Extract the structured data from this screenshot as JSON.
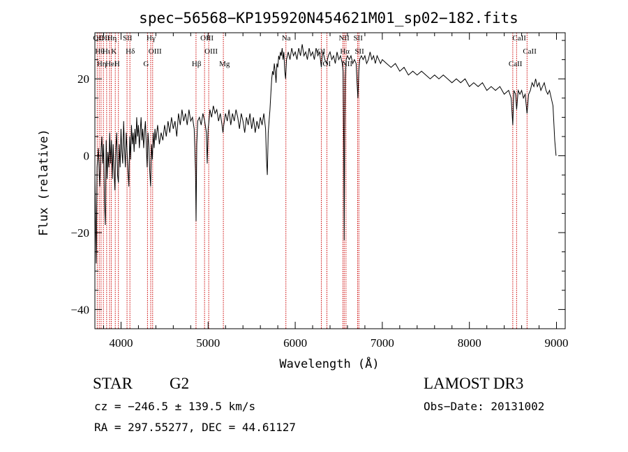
{
  "chart_data": {
    "type": "line",
    "title": "spec−56568−KP195920N454621M01_sp02−182.fits",
    "xlabel": "Wavelength (Å)",
    "ylabel": "Flux (relative)",
    "xlim": [
      3700,
      9100
    ],
    "ylim": [
      -45,
      32
    ],
    "xticks": [
      {
        "value": 4000,
        "label": "4000"
      },
      {
        "value": 5000,
        "label": "5000"
      },
      {
        "value": 6000,
        "label": "6000"
      },
      {
        "value": 7000,
        "label": "7000"
      },
      {
        "value": 8000,
        "label": "8000"
      },
      {
        "value": 9000,
        "label": "9000"
      }
    ],
    "yticks": [
      {
        "value": 20,
        "label": "20"
      },
      {
        "value": 0,
        "label": "0"
      },
      {
        "value": -20,
        "label": "−20"
      },
      {
        "value": -40,
        "label": "−40"
      }
    ],
    "grid": false,
    "series": [
      {
        "color": "#000000",
        "points": [
          [
            3700,
            -5
          ],
          [
            3715,
            -28
          ],
          [
            3725,
            -3
          ],
          [
            3740,
            2
          ],
          [
            3755,
            -8
          ],
          [
            3765,
            -1
          ],
          [
            3780,
            5
          ],
          [
            3790,
            -2
          ],
          [
            3800,
            3
          ],
          [
            3810,
            -12
          ],
          [
            3820,
            -18
          ],
          [
            3830,
            4
          ],
          [
            3840,
            -6
          ],
          [
            3850,
            1
          ],
          [
            3860,
            -3
          ],
          [
            3870,
            6
          ],
          [
            3880,
            -2
          ],
          [
            3890,
            4
          ],
          [
            3900,
            -6
          ],
          [
            3910,
            3
          ],
          [
            3920,
            -4
          ],
          [
            3930,
            -9
          ],
          [
            3940,
            2
          ],
          [
            3950,
            6
          ],
          [
            3960,
            -5
          ],
          [
            3970,
            -7
          ],
          [
            3980,
            3
          ],
          [
            3990,
            -3
          ],
          [
            4000,
            7
          ],
          [
            4010,
            1
          ],
          [
            4020,
            -2
          ],
          [
            4030,
            9
          ],
          [
            4040,
            2
          ],
          [
            4050,
            -3
          ],
          [
            4060,
            6
          ],
          [
            4070,
            1
          ],
          [
            4080,
            -4
          ],
          [
            4090,
            -8
          ],
          [
            4100,
            5
          ],
          [
            4110,
            -1
          ],
          [
            4120,
            8
          ],
          [
            4130,
            3
          ],
          [
            4140,
            6
          ],
          [
            4150,
            1
          ],
          [
            4160,
            7
          ],
          [
            4170,
            3
          ],
          [
            4180,
            10
          ],
          [
            4190,
            5
          ],
          [
            4200,
            8
          ],
          [
            4210,
            2
          ],
          [
            4220,
            6
          ],
          [
            4230,
            10
          ],
          [
            4240,
            4
          ],
          [
            4250,
            7
          ],
          [
            4260,
            2
          ],
          [
            4270,
            6
          ],
          [
            4280,
            9
          ],
          [
            4290,
            3
          ],
          [
            4300,
            -3
          ],
          [
            4310,
            6
          ],
          [
            4320,
            2
          ],
          [
            4330,
            -4
          ],
          [
            4340,
            -8
          ],
          [
            4350,
            3
          ],
          [
            4360,
            -1
          ],
          [
            4370,
            6
          ],
          [
            4380,
            2
          ],
          [
            4390,
            7
          ],
          [
            4400,
            4
          ],
          [
            4420,
            8
          ],
          [
            4440,
            3
          ],
          [
            4460,
            6
          ],
          [
            4480,
            4
          ],
          [
            4500,
            8
          ],
          [
            4520,
            5
          ],
          [
            4540,
            9
          ],
          [
            4560,
            6
          ],
          [
            4580,
            10
          ],
          [
            4600,
            7
          ],
          [
            4620,
            9
          ],
          [
            4640,
            5
          ],
          [
            4660,
            11
          ],
          [
            4680,
            8
          ],
          [
            4700,
            12
          ],
          [
            4720,
            9
          ],
          [
            4740,
            11
          ],
          [
            4760,
            8
          ],
          [
            4780,
            12
          ],
          [
            4800,
            9
          ],
          [
            4820,
            10
          ],
          [
            4840,
            7
          ],
          [
            4855,
            -4
          ],
          [
            4862,
            -17
          ],
          [
            4870,
            3
          ],
          [
            4880,
            9
          ],
          [
            4900,
            10
          ],
          [
            4920,
            8
          ],
          [
            4940,
            11
          ],
          [
            4960,
            9
          ],
          [
            4980,
            6
          ],
          [
            4990,
            -2
          ],
          [
            5000,
            7
          ],
          [
            5010,
            9
          ],
          [
            5020,
            12
          ],
          [
            5040,
            10
          ],
          [
            5060,
            13
          ],
          [
            5080,
            11
          ],
          [
            5100,
            12
          ],
          [
            5120,
            9
          ],
          [
            5140,
            11
          ],
          [
            5160,
            8
          ],
          [
            5170,
            6
          ],
          [
            5180,
            8
          ],
          [
            5200,
            11
          ],
          [
            5220,
            9
          ],
          [
            5240,
            12
          ],
          [
            5260,
            8
          ],
          [
            5280,
            11
          ],
          [
            5300,
            9
          ],
          [
            5320,
            12
          ],
          [
            5340,
            10
          ],
          [
            5360,
            7
          ],
          [
            5380,
            11
          ],
          [
            5400,
            9
          ],
          [
            5420,
            6
          ],
          [
            5440,
            10
          ],
          [
            5460,
            8
          ],
          [
            5480,
            11
          ],
          [
            5500,
            7
          ],
          [
            5520,
            10
          ],
          [
            5540,
            6
          ],
          [
            5560,
            9
          ],
          [
            5580,
            7
          ],
          [
            5600,
            10
          ],
          [
            5620,
            8
          ],
          [
            5640,
            11
          ],
          [
            5660,
            7
          ],
          [
            5670,
            -1
          ],
          [
            5680,
            -5
          ],
          [
            5690,
            6
          ],
          [
            5700,
            9
          ],
          [
            5710,
            12
          ],
          [
            5720,
            16
          ],
          [
            5730,
            20
          ],
          [
            5740,
            22
          ],
          [
            5750,
            21
          ],
          [
            5760,
            24
          ],
          [
            5770,
            22
          ],
          [
            5780,
            19
          ],
          [
            5790,
            24
          ],
          [
            5800,
            23
          ],
          [
            5810,
            26
          ],
          [
            5820,
            25
          ],
          [
            5830,
            27
          ],
          [
            5840,
            26
          ],
          [
            5850,
            28
          ],
          [
            5860,
            25
          ],
          [
            5870,
            27
          ],
          [
            5880,
            22
          ],
          [
            5890,
            20
          ],
          [
            5900,
            25
          ],
          [
            5920,
            27
          ],
          [
            5940,
            25
          ],
          [
            5960,
            28
          ],
          [
            5980,
            26
          ],
          [
            6000,
            27
          ],
          [
            6020,
            25
          ],
          [
            6040,
            28
          ],
          [
            6060,
            26
          ],
          [
            6080,
            29
          ],
          [
            6100,
            26
          ],
          [
            6120,
            27
          ],
          [
            6140,
            25
          ],
          [
            6160,
            28
          ],
          [
            6180,
            26
          ],
          [
            6200,
            27
          ],
          [
            6220,
            25
          ],
          [
            6240,
            28
          ],
          [
            6260,
            26
          ],
          [
            6280,
            27
          ],
          [
            6300,
            23
          ],
          [
            6310,
            26
          ],
          [
            6320,
            27
          ],
          [
            6340,
            25
          ],
          [
            6360,
            24
          ],
          [
            6380,
            26
          ],
          [
            6400,
            27
          ],
          [
            6420,
            25
          ],
          [
            6440,
            26
          ],
          [
            6460,
            24
          ],
          [
            6480,
            27
          ],
          [
            6500,
            25
          ],
          [
            6520,
            26
          ],
          [
            6540,
            24
          ],
          [
            6550,
            22
          ],
          [
            6558,
            2
          ],
          [
            6563,
            -22
          ],
          [
            6568,
            5
          ],
          [
            6575,
            20
          ],
          [
            6585,
            25
          ],
          [
            6600,
            26
          ],
          [
            6620,
            25
          ],
          [
            6640,
            26
          ],
          [
            6660,
            24
          ],
          [
            6680,
            25
          ],
          [
            6700,
            24
          ],
          [
            6710,
            19
          ],
          [
            6720,
            15
          ],
          [
            6730,
            22
          ],
          [
            6740,
            25
          ],
          [
            6760,
            26
          ],
          [
            6780,
            25
          ],
          [
            6800,
            26
          ],
          [
            6820,
            24
          ],
          [
            6840,
            25
          ],
          [
            6860,
            27
          ],
          [
            6880,
            25
          ],
          [
            6900,
            26
          ],
          [
            6920,
            24
          ],
          [
            6940,
            26
          ],
          [
            6960,
            25
          ],
          [
            6980,
            24
          ],
          [
            7000,
            25
          ],
          [
            7050,
            24
          ],
          [
            7100,
            23
          ],
          [
            7150,
            24
          ],
          [
            7200,
            22
          ],
          [
            7250,
            23
          ],
          [
            7300,
            21
          ],
          [
            7350,
            22
          ],
          [
            7400,
            21
          ],
          [
            7450,
            22
          ],
          [
            7500,
            21
          ],
          [
            7550,
            20
          ],
          [
            7600,
            21
          ],
          [
            7650,
            20
          ],
          [
            7700,
            21
          ],
          [
            7750,
            20
          ],
          [
            7800,
            19
          ],
          [
            7850,
            20
          ],
          [
            7900,
            19
          ],
          [
            7950,
            20
          ],
          [
            8000,
            18
          ],
          [
            8050,
            19
          ],
          [
            8100,
            18
          ],
          [
            8150,
            19
          ],
          [
            8200,
            17
          ],
          [
            8250,
            18
          ],
          [
            8300,
            17
          ],
          [
            8350,
            18
          ],
          [
            8400,
            16
          ],
          [
            8450,
            17
          ],
          [
            8480,
            15
          ],
          [
            8498,
            8
          ],
          [
            8510,
            17
          ],
          [
            8530,
            16
          ],
          [
            8542,
            12
          ],
          [
            8560,
            17
          ],
          [
            8580,
            16
          ],
          [
            8600,
            17
          ],
          [
            8620,
            15
          ],
          [
            8640,
            16
          ],
          [
            8662,
            11
          ],
          [
            8680,
            16
          ],
          [
            8700,
            17
          ],
          [
            8720,
            19
          ],
          [
            8740,
            18
          ],
          [
            8760,
            20
          ],
          [
            8780,
            18
          ],
          [
            8800,
            19
          ],
          [
            8820,
            17
          ],
          [
            8840,
            18
          ],
          [
            8860,
            19
          ],
          [
            8880,
            17
          ],
          [
            8900,
            16
          ],
          [
            8920,
            17
          ],
          [
            8940,
            15
          ],
          [
            8960,
            13
          ],
          [
            8980,
            4
          ],
          [
            8995,
            0
          ]
        ]
      }
    ],
    "lines": [
      {
        "x": 3727,
        "labels": [
          "OII"
        ]
      },
      {
        "x": 3750,
        "labels": [
          "Hθ"
        ]
      },
      {
        "x": 3771,
        "labels": [
          "Hη"
        ]
      },
      {
        "x": 3798,
        "labels": [
          "OII"
        ]
      },
      {
        "x": 3835,
        "labels": [
          "Hι"
        ]
      },
      {
        "x": 3869,
        "labels": [
          "HeI"
        ]
      },
      {
        "x": 3889,
        "labels": [
          "Hη"
        ]
      },
      {
        "x": 3934,
        "labels": [
          "K"
        ]
      },
      {
        "x": 3970,
        "labels": [
          "H"
        ]
      },
      {
        "x": 4069,
        "labels": [
          "SII"
        ]
      },
      {
        "x": 4102,
        "labels": [
          "Hδ"
        ]
      },
      {
        "x": 4304,
        "labels": [
          "G"
        ]
      },
      {
        "x": 4341,
        "labels": [
          "Hγ"
        ]
      },
      {
        "x": 4363,
        "labels": [
          "OIII"
        ]
      },
      {
        "x": 4861,
        "labels": [
          "Hβ"
        ]
      },
      {
        "x": 4959,
        "labels": [
          "OIII"
        ]
      },
      {
        "x": 5007,
        "labels": [
          "OIII"
        ]
      },
      {
        "x": 5175,
        "labels": [
          "Mg"
        ]
      },
      {
        "x": 5893,
        "labels": [
          "Na"
        ]
      },
      {
        "x": 6300,
        "labels": [
          "OI"
        ]
      },
      {
        "x": 6364,
        "labels": [
          "OI"
        ]
      },
      {
        "x": 6548,
        "labels": [
          "NII"
        ]
      },
      {
        "x": 6563,
        "labels": [
          "Hα"
        ]
      },
      {
        "x": 6583,
        "labels": [
          "NII"
        ]
      },
      {
        "x": 6716,
        "labels": [
          "SII"
        ]
      },
      {
        "x": 6731,
        "labels": [
          "SII"
        ]
      },
      {
        "x": 8498,
        "labels": [
          "CaII"
        ]
      },
      {
        "x": 8542,
        "labels": [
          "CaII"
        ]
      },
      {
        "x": 8662,
        "labels": [
          "CaII"
        ]
      }
    ]
  },
  "info": {
    "class": "STAR",
    "subclass": "G2",
    "survey": "LAMOST DR3",
    "cz": "cz = −246.5 ± 139.5 km/s",
    "obs_date": "Obs−Date: 20131002",
    "coords": "RA = 297.55277, DEC =  44.61127"
  },
  "colors": {
    "spectrum": "#000000",
    "line_markers": "#cc0000",
    "axes": "#000000"
  }
}
